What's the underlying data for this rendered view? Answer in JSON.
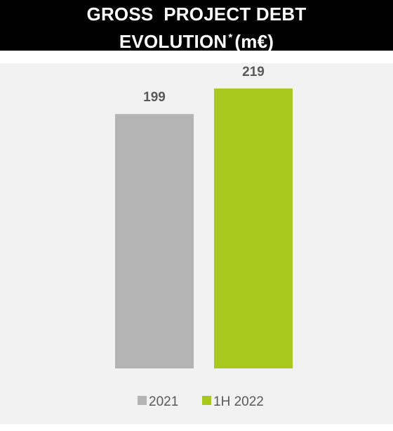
{
  "title": {
    "line1": "GROSS  PROJECT DEBT",
    "line2_main": "EVOLUTION",
    "line2_marker": "*",
    "line2_unit": "(m€)"
  },
  "chart_data": {
    "type": "bar",
    "title": "GROSS  PROJECT DEBT EVOLUTION * (m€)",
    "categories": [
      "2021",
      "1H 2022"
    ],
    "series": [
      {
        "name": "2021",
        "values": [
          199,
          null
        ],
        "color": "#b4b4b4"
      },
      {
        "name": "1H 2022",
        "values": [
          null,
          219
        ],
        "color": "#a8c81e"
      }
    ],
    "values": [
      199,
      219
    ],
    "data_labels": [
      "199",
      "219"
    ],
    "ylim": [
      0,
      230
    ],
    "grid": false,
    "legend": "bottom-center",
    "xlabel": "",
    "ylabel": ""
  }
}
